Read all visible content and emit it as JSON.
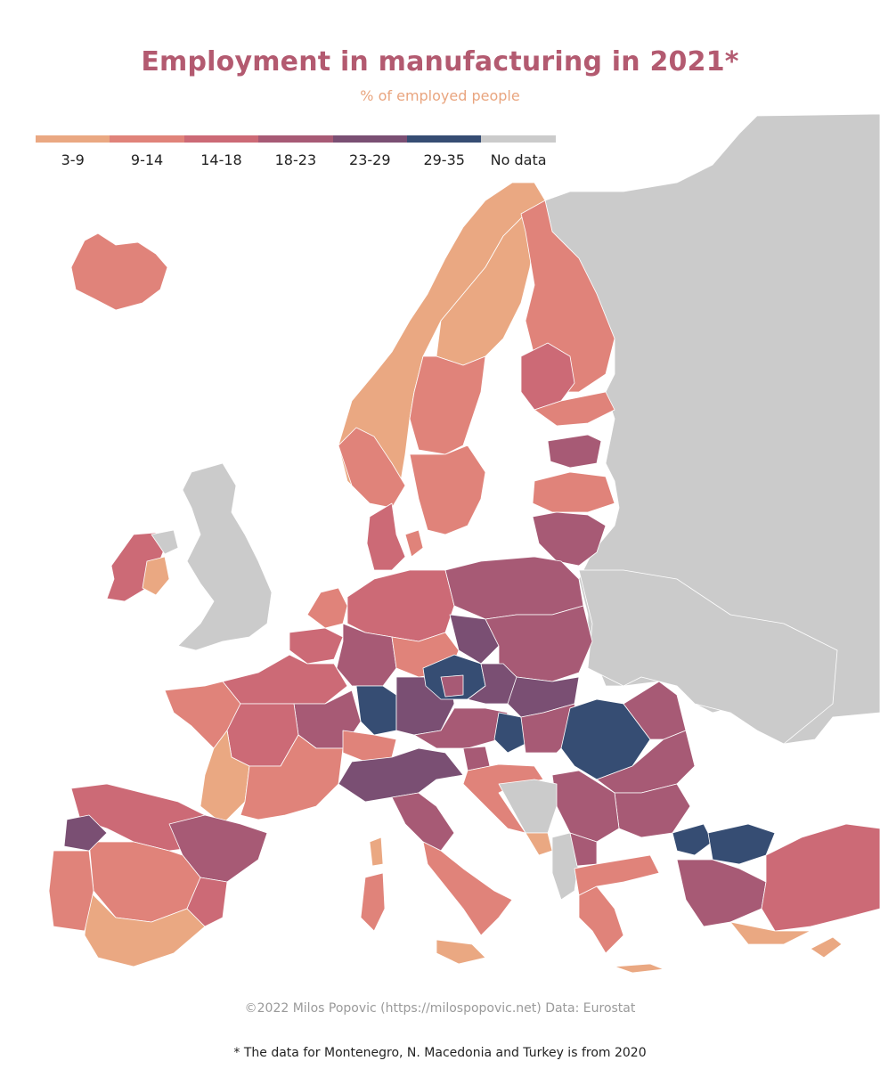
{
  "header": {
    "title": "Employment in manufacturing in 2021*",
    "subtitle": "% of employed people"
  },
  "legend": [
    {
      "label": "3-9",
      "color": "#eaa882"
    },
    {
      "label": "9-14",
      "color": "#e0837a"
    },
    {
      "label": "14-18",
      "color": "#cc6a76"
    },
    {
      "label": "18-23",
      "color": "#a75a75"
    },
    {
      "label": "23-29",
      "color": "#7a4f73"
    },
    {
      "label": "29-35",
      "color": "#364d73"
    },
    {
      "label": "No data",
      "color": "#cbcbcb"
    }
  ],
  "colors": {
    "sea": "#ffffff",
    "border": "#ffffff"
  },
  "footer": {
    "credit": "©2022 Milos Popovic (https://milospopovic.net) Data: Eurostat",
    "footnote": "* The data for Montenegro, N. Macedonia and Turkey is from 2020"
  }
}
